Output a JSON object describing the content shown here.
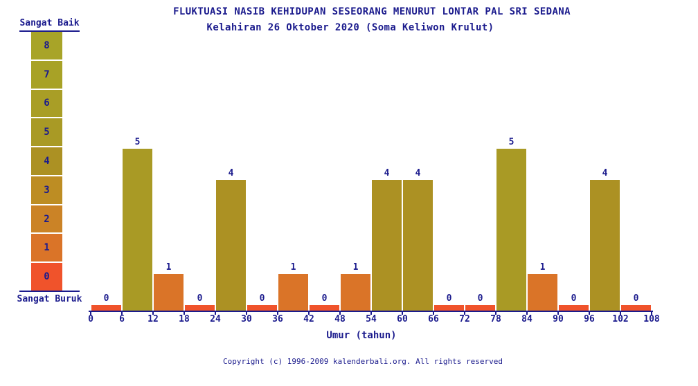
{
  "theme": {
    "background": "#ffffff",
    "text_color": "#1b1b8d"
  },
  "chart_data": {
    "type": "bar",
    "title": "FLUKTUASI NASIB KEHIDUPAN SESEORANG MENURUT LONTAR PAL SRI SEDANA",
    "subtitle": "Kelahiran 26 Oktober 2020 (Soma Keliwon Krulut)",
    "xlabel": "Umur (tahun)",
    "x_ticks": [
      0,
      6,
      12,
      18,
      24,
      30,
      36,
      42,
      48,
      54,
      60,
      66,
      72,
      78,
      84,
      90,
      96,
      102,
      108
    ],
    "categories": [
      "0-6",
      "6-12",
      "12-18",
      "18-24",
      "24-30",
      "30-36",
      "36-42",
      "42-48",
      "48-54",
      "54-60",
      "60-66",
      "66-72",
      "72-78",
      "78-84",
      "84-90",
      "90-96",
      "96-102",
      "102-108"
    ],
    "values": [
      0,
      5,
      1,
      0,
      4,
      0,
      1,
      0,
      1,
      4,
      4,
      0,
      0,
      5,
      1,
      0,
      4,
      0
    ],
    "ylim": [
      0,
      8
    ],
    "grid": false,
    "legend_position": "left"
  },
  "scale": {
    "top_label": "Sangat Baik",
    "bottom_label": "Sangat Buruk",
    "levels": [
      {
        "value": 8,
        "color": "#a8a428"
      },
      {
        "value": 7,
        "color": "#a8a226"
      },
      {
        "value": 6,
        "color": "#a99e26"
      },
      {
        "value": 5,
        "color": "#a99a25"
      },
      {
        "value": 4,
        "color": "#ac9123"
      },
      {
        "value": 3,
        "color": "#bd8d23"
      },
      {
        "value": 2,
        "color": "#cb8326"
      },
      {
        "value": 1,
        "color": "#da7428"
      },
      {
        "value": 0,
        "color": "#f0532b"
      }
    ]
  },
  "footer": {
    "copyright": "Copyright (c) 1996-2009 kalenderbali.org. All rights reserved"
  }
}
